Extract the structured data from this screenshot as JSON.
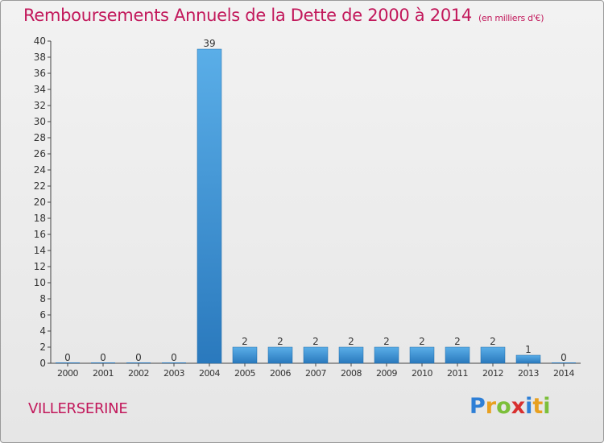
{
  "header": {
    "title": "Remboursements Annuels de la Dette de 2000 à 2014",
    "unit": "(en milliers d'€)"
  },
  "footer": {
    "commune": "VILLERSERINE",
    "logo_letters": [
      "P",
      "r",
      "o",
      "x",
      "i",
      "t",
      "i"
    ],
    "logo_colors": [
      "#2e7fd6",
      "#e8a020",
      "#7cbf3a",
      "#d8302f",
      "#2e7fd6",
      "#e8a020",
      "#7cbf3a"
    ]
  },
  "chart_data": {
    "type": "bar",
    "categories": [
      "2000",
      "2001",
      "2002",
      "2003",
      "2004",
      "2005",
      "2006",
      "2007",
      "2008",
      "2009",
      "2010",
      "2011",
      "2012",
      "2013",
      "2014"
    ],
    "values": [
      0,
      0,
      0,
      0,
      39,
      2,
      2,
      2,
      2,
      2,
      2,
      2,
      2,
      1,
      0
    ],
    "data_labels": [
      "0",
      "0",
      "0",
      "0",
      "39",
      "2",
      "2",
      "2",
      "2",
      "2",
      "2",
      "2",
      "2",
      "1",
      "0"
    ],
    "ylim": [
      0,
      40
    ],
    "yticks": [
      0,
      2,
      4,
      6,
      8,
      10,
      12,
      14,
      16,
      18,
      20,
      22,
      24,
      26,
      28,
      30,
      32,
      34,
      36,
      38,
      40
    ],
    "grid": false,
    "colors": {
      "bar_top": "#5aaee8",
      "bar_bottom": "#2a79bd",
      "axis": "#444444",
      "text": "#333333"
    }
  }
}
